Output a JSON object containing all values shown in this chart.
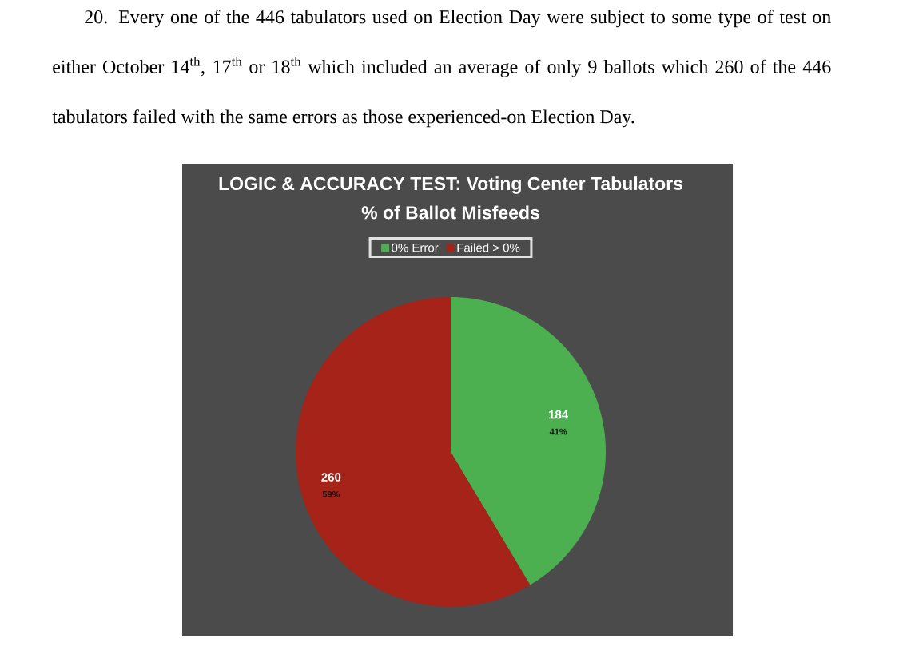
{
  "chart_data": {
    "type": "pie",
    "title": "LOGIC & ACCURACY TEST: Voting Center Tabulators",
    "subtitle": "% of Ballot Misfeeds",
    "categories": [
      "0% Error",
      "Failed > 0%"
    ],
    "values": [
      184,
      260
    ],
    "colors": [
      "#4caf50",
      "#a52318"
    ],
    "data_labels": true,
    "legend": "top",
    "annotations": [
      "20. Every one of the 446 tabulators used on Election Day were subject to some type of test on either October 14$^{th}$, 17$^{th}$ or 18$^{th}$ which included an average of only 9 ballots which 260 of the 446 tabulators failed with the same errors as those experienced-on Election Day.",
      "41%",
      "59%"
    ]
  }
}
